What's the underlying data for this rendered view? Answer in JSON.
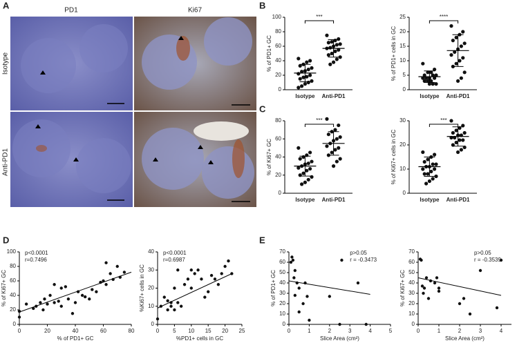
{
  "images": {
    "panel_label": "A",
    "columns": [
      "PD1",
      "Ki67"
    ],
    "rows": [
      "Isotype",
      "Anti-PD1"
    ]
  },
  "chart_data": [
    {
      "type": "dotplot",
      "panel_label": "B",
      "ylabel": "% of PD1+ GC",
      "categories": [
        "Isotype",
        "Anti-PD1"
      ],
      "significance": "***",
      "groups": [
        [
          43,
          40,
          38,
          35,
          33,
          30,
          28,
          26,
          25,
          22,
          20,
          18,
          17,
          15,
          12,
          10,
          8,
          5,
          3
        ],
        [
          75,
          70,
          68,
          66,
          65,
          63,
          62,
          60,
          58,
          57,
          55,
          53,
          50,
          48,
          45,
          42,
          38,
          35
        ]
      ],
      "means": [
        23,
        57
      ],
      "sds": [
        12,
        12
      ],
      "ylim": [
        0,
        100
      ],
      "yticks": [
        0,
        20,
        40,
        60,
        80,
        100
      ]
    },
    {
      "type": "dotplot",
      "ylabel": "% of PD1+ cells in GC",
      "categories": [
        "Isotype",
        "Anti-PD1"
      ],
      "significance": "****",
      "groups": [
        [
          9,
          7,
          6,
          6,
          5,
          5,
          5,
          4,
          4,
          4,
          4,
          3,
          3,
          3,
          2,
          2,
          2
        ],
        [
          22,
          20,
          19,
          18,
          17,
          16,
          15,
          14,
          13,
          12,
          11,
          10,
          9,
          8,
          6,
          4,
          3
        ]
      ],
      "means": [
        4.5,
        13.5
      ],
      "sds": [
        2,
        5.5
      ],
      "ylim": [
        0,
        25
      ],
      "yticks": [
        0,
        5,
        10,
        15,
        20,
        25
      ]
    },
    {
      "type": "dotplot",
      "panel_label": "C",
      "ylabel": "% of Ki67+ GC",
      "categories": [
        "Isotype",
        "Anti-PD1"
      ],
      "significance": "***",
      "groups": [
        [
          50,
          45,
          42,
          40,
          38,
          35,
          33,
          32,
          30,
          28,
          27,
          25,
          22,
          20,
          18,
          15,
          12,
          10
        ],
        [
          82,
          75,
          70,
          68,
          65,
          62,
          60,
          58,
          55,
          52,
          50,
          48,
          45,
          42,
          38,
          35,
          30
        ]
      ],
      "means": [
        30,
        55
      ],
      "sds": [
        11,
        13
      ],
      "ylim": [
        0,
        80
      ],
      "yticks": [
        0,
        20,
        40,
        60,
        80
      ]
    },
    {
      "type": "dotplot",
      "ylabel": "% of Ki67+ cells in GC",
      "categories": [
        "Isotype",
        "Anti-PD1"
      ],
      "significance": "***",
      "groups": [
        [
          17,
          16,
          15,
          14,
          13,
          12,
          12,
          11,
          11,
          10,
          10,
          9,
          8,
          8,
          7,
          6,
          5,
          4
        ],
        [
          30,
          28,
          27,
          26,
          25,
          25,
          24,
          24,
          23,
          23,
          22,
          22,
          21,
          20,
          19,
          18,
          17
        ]
      ],
      "means": [
        11,
        23.5
      ],
      "sds": [
        4,
        4
      ],
      "ylim": [
        0,
        30
      ],
      "yticks": [
        0,
        10,
        20,
        30
      ]
    },
    {
      "type": "scatter",
      "panel_label": "D",
      "xlabel": "% of PD1+ GC",
      "ylabel": "% of Ki67+ GC",
      "annotations": [
        "p<0.0001",
        "r=0.7496"
      ],
      "x": [
        0,
        0,
        5,
        10,
        12,
        15,
        17,
        18,
        20,
        22,
        25,
        25,
        28,
        30,
        30,
        33,
        35,
        38,
        40,
        42,
        45,
        47,
        50,
        52,
        55,
        58,
        60,
        62,
        62,
        65,
        67,
        70,
        72,
        75
      ],
      "y": [
        10,
        18,
        28,
        22,
        25,
        30,
        20,
        35,
        28,
        40,
        30,
        55,
        32,
        50,
        25,
        52,
        35,
        15,
        30,
        45,
        40,
        38,
        35,
        48,
        45,
        58,
        60,
        55,
        85,
        70,
        62,
        80,
        65,
        72
      ],
      "fit_line": {
        "x": [
          0,
          80
        ],
        "y": [
          17,
          72
        ]
      },
      "xlim": [
        0,
        80
      ],
      "xticks": [
        0,
        20,
        40,
        60,
        80
      ],
      "ylim": [
        0,
        100
      ],
      "yticks": [
        0,
        20,
        40,
        60,
        80,
        100
      ]
    },
    {
      "type": "scatter",
      "xlabel": "%PD1+ cells in GC",
      "ylabel": "%Ki67+ cells in GC",
      "annotations": [
        "p<0.0001",
        "r=0.6987"
      ],
      "x": [
        0,
        1,
        2,
        3,
        3,
        4,
        4,
        5,
        5,
        6,
        6,
        7,
        8,
        9,
        10,
        10,
        11,
        12,
        13,
        14,
        15,
        16,
        17,
        18,
        19,
        20,
        21,
        22
      ],
      "y": [
        3,
        10,
        15,
        8,
        13,
        10,
        12,
        8,
        20,
        12,
        30,
        10,
        22,
        25,
        20,
        30,
        28,
        30,
        25,
        15,
        18,
        27,
        25,
        22,
        28,
        32,
        35,
        28
      ],
      "fit_line": {
        "x": [
          0,
          22
        ],
        "y": [
          9,
          28
        ]
      },
      "xlim": [
        0,
        25
      ],
      "xticks": [
        0,
        5,
        10,
        15,
        20,
        25
      ],
      "ylim": [
        0,
        40
      ],
      "yticks": [
        0,
        10,
        20,
        30,
        40
      ]
    },
    {
      "type": "scatter",
      "panel_label": "E",
      "xlabel": "Slice Area (cm²)",
      "ylabel": "% of PD1+ GC",
      "annotations": [
        "p>0.05",
        "r = -0.3473"
      ],
      "x": [
        0.1,
        0.15,
        0.2,
        0.25,
        0.3,
        0.3,
        0.4,
        0.5,
        0.5,
        0.7,
        0.8,
        0.9,
        1,
        2,
        2.5,
        2.6,
        3.4,
        3.8
      ],
      "y": [
        60,
        65,
        62,
        45,
        52,
        28,
        40,
        35,
        12,
        20,
        40,
        27,
        4,
        27,
        0,
        62,
        40,
        0
      ],
      "fit_line": {
        "x": [
          0,
          4
        ],
        "y": [
          42,
          29
        ]
      },
      "xlim": [
        0,
        5
      ],
      "xticks": [
        0,
        1,
        2,
        3,
        4,
        5
      ],
      "ylim": [
        0,
        70
      ],
      "yticks": [
        0,
        10,
        20,
        30,
        40,
        50,
        60,
        70
      ]
    },
    {
      "type": "scatter",
      "xlabel": "Slice Area (cm²)",
      "ylabel": "% of Ki67+ GC",
      "annotations": [
        "p>0.05",
        "r = -0.3539"
      ],
      "x": [
        0.1,
        0.15,
        0.2,
        0.25,
        0.3,
        0.4,
        0.5,
        0.6,
        0.8,
        0.9,
        1,
        1,
        2,
        2.2,
        2.5,
        3,
        3.8,
        4
      ],
      "y": [
        63,
        62,
        37,
        30,
        35,
        45,
        25,
        42,
        40,
        45,
        35,
        32,
        20,
        25,
        10,
        52,
        16,
        62
      ],
      "fit_line": {
        "x": [
          0,
          4
        ],
        "y": [
          45,
          28
        ]
      },
      "xlim": [
        0,
        4.5
      ],
      "xticks": [
        0,
        1,
        2,
        3,
        4
      ],
      "ylim": [
        0,
        70
      ],
      "yticks": [
        0,
        10,
        20,
        30,
        40,
        50,
        60,
        70
      ]
    }
  ]
}
